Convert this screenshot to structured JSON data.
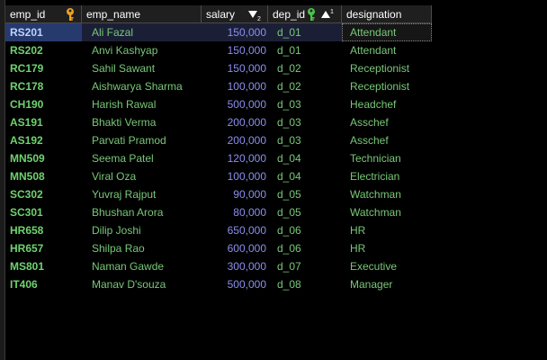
{
  "columns": [
    {
      "label": "emp_id",
      "icon": "primary-key-icon"
    },
    {
      "label": "emp_name"
    },
    {
      "label": "salary",
      "icon": "sort-descending-icon"
    },
    {
      "label": "dep_id",
      "icon": "foreign-key-sort-ascending-icon"
    },
    {
      "label": "designation"
    }
  ],
  "rows": [
    {
      "emp_id": "RS201",
      "emp_name": "Ali Fazal",
      "salary": "150,000",
      "dep_id": "d_01",
      "designation": "Attendant"
    },
    {
      "emp_id": "RS202",
      "emp_name": "Anvi Kashyap",
      "salary": "150,000",
      "dep_id": "d_01",
      "designation": "Attendant"
    },
    {
      "emp_id": "RC179",
      "emp_name": "Sahil Sawant",
      "salary": "150,000",
      "dep_id": "d_02",
      "designation": "Receptionist"
    },
    {
      "emp_id": "RC178",
      "emp_name": "Aishwarya Sharma",
      "salary": "100,000",
      "dep_id": "d_02",
      "designation": "Receptionist"
    },
    {
      "emp_id": "CH190",
      "emp_name": "Harish Rawal",
      "salary": "500,000",
      "dep_id": "d_03",
      "designation": "Headchef"
    },
    {
      "emp_id": "AS191",
      "emp_name": "Bhakti Verma",
      "salary": "200,000",
      "dep_id": "d_03",
      "designation": "Asschef"
    },
    {
      "emp_id": "AS192",
      "emp_name": "Parvati Pramod",
      "salary": "200,000",
      "dep_id": "d_03",
      "designation": "Asschef"
    },
    {
      "emp_id": "MN509",
      "emp_name": "Seema Patel",
      "salary": "120,000",
      "dep_id": "d_04",
      "designation": "Technician"
    },
    {
      "emp_id": "MN508",
      "emp_name": "Viral Oza",
      "salary": "100,000",
      "dep_id": "d_04",
      "designation": "Electrician"
    },
    {
      "emp_id": "SC302",
      "emp_name": "Yuvraj Rajput",
      "salary": "90,000",
      "dep_id": "d_05",
      "designation": "Watchman"
    },
    {
      "emp_id": "SC301",
      "emp_name": "Bhushan Arora",
      "salary": "80,000",
      "dep_id": "d_05",
      "designation": "Watchman"
    },
    {
      "emp_id": "HR658",
      "emp_name": "Dilip Joshi",
      "salary": "650,000",
      "dep_id": "d_06",
      "designation": "HR"
    },
    {
      "emp_id": "HR657",
      "emp_name": "Shilpa Rao",
      "salary": "600,000",
      "dep_id": "d_06",
      "designation": "HR"
    },
    {
      "emp_id": "MS801",
      "emp_name": "Naman Gawde",
      "salary": "300,000",
      "dep_id": "d_07",
      "designation": "Executive"
    },
    {
      "emp_id": "IT406",
      "emp_name": "Manav D'souza",
      "salary": "500,000",
      "dep_id": "d_08",
      "designation": "Manager"
    }
  ],
  "colors": {
    "background": "#000000",
    "id_text": "#6fd36f",
    "text": "#78c878",
    "number_text": "#8a8ff0",
    "selected_row": "#1b1f36",
    "key_icon_primary": "#f0a020",
    "key_icon_foreign": "#4cc24c"
  }
}
